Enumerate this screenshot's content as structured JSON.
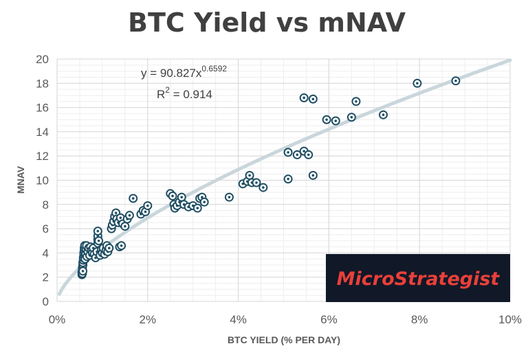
{
  "chart_data": {
    "type": "scatter",
    "title": "BTC Yield vs mNAV",
    "xlabel": "BTC YIELD (% PER DAY)",
    "ylabel": "MNAV",
    "xlim": [
      0,
      10
    ],
    "ylim": [
      0,
      20
    ],
    "x_ticks": [
      "0%",
      "2%",
      "4%",
      "6%",
      "8%",
      "10%"
    ],
    "y_ticks": [
      "0",
      "2",
      "4",
      "6",
      "8",
      "10",
      "12",
      "14",
      "16",
      "18",
      "20"
    ],
    "grid": true,
    "marker_color": "#1f4e63",
    "trendline": {
      "type": "power",
      "coefficient": 90.827,
      "exponent": 0.6592,
      "equation_base": "y = 90.827x",
      "equation_exponent": "0.6592",
      "r2_label": "R",
      "r2_sup": "2",
      "r2_value": " = 0.914",
      "color": "#c9d6dc"
    },
    "points": [
      [
        0.55,
        2.2
      ],
      [
        0.55,
        2.4
      ],
      [
        0.56,
        2.6
      ],
      [
        0.56,
        2.8
      ],
      [
        0.57,
        3.0
      ],
      [
        0.57,
        3.2
      ],
      [
        0.58,
        3.4
      ],
      [
        0.58,
        3.6
      ],
      [
        0.59,
        3.8
      ],
      [
        0.59,
        4.0
      ],
      [
        0.6,
        4.2
      ],
      [
        0.6,
        4.4
      ],
      [
        0.61,
        4.6
      ],
      [
        0.56,
        2.3
      ],
      [
        0.57,
        2.5
      ],
      [
        0.62,
        3.5
      ],
      [
        0.63,
        3.9
      ],
      [
        0.64,
        4.3
      ],
      [
        0.65,
        4.6
      ],
      [
        0.66,
        3.7
      ],
      [
        0.68,
        4.1
      ],
      [
        0.7,
        4.4
      ],
      [
        0.72,
        3.8
      ],
      [
        0.74,
        4.5
      ],
      [
        0.76,
        4.2
      ],
      [
        0.78,
        4.0
      ],
      [
        0.8,
        4.4
      ],
      [
        0.82,
        3.9
      ],
      [
        0.85,
        3.6
      ],
      [
        0.88,
        4.1
      ],
      [
        0.9,
        4.8
      ],
      [
        0.9,
        5.1
      ],
      [
        0.9,
        5.4
      ],
      [
        0.9,
        5.8
      ],
      [
        0.92,
        5.0
      ],
      [
        0.95,
        3.8
      ],
      [
        0.98,
        4.3
      ],
      [
        1.0,
        4.0
      ],
      [
        1.02,
        4.4
      ],
      [
        1.05,
        3.9
      ],
      [
        1.08,
        4.2
      ],
      [
        1.1,
        4.6
      ],
      [
        1.12,
        4.1
      ],
      [
        1.15,
        4.4
      ],
      [
        1.2,
        6.0
      ],
      [
        1.22,
        6.3
      ],
      [
        1.25,
        6.6
      ],
      [
        1.27,
        7.0
      ],
      [
        1.3,
        7.3
      ],
      [
        1.32,
        6.8
      ],
      [
        1.35,
        6.5
      ],
      [
        1.4,
        6.9
      ],
      [
        1.45,
        6.4
      ],
      [
        1.5,
        6.2
      ],
      [
        1.55,
        6.8
      ],
      [
        1.6,
        7.1
      ],
      [
        1.38,
        4.5
      ],
      [
        1.42,
        4.6
      ],
      [
        1.68,
        8.5
      ],
      [
        1.85,
        7.2
      ],
      [
        1.9,
        7.5
      ],
      [
        1.95,
        7.4
      ],
      [
        2.0,
        7.9
      ],
      [
        2.5,
        8.9
      ],
      [
        2.55,
        8.7
      ],
      [
        2.58,
        8.0
      ],
      [
        2.6,
        7.7
      ],
      [
        2.65,
        7.9
      ],
      [
        2.7,
        8.2
      ],
      [
        2.75,
        8.6
      ],
      [
        2.8,
        8.0
      ],
      [
        2.9,
        7.8
      ],
      [
        3.0,
        7.9
      ],
      [
        3.1,
        7.7
      ],
      [
        3.15,
        8.5
      ],
      [
        3.2,
        8.6
      ],
      [
        3.25,
        8.2
      ],
      [
        3.8,
        8.6
      ],
      [
        4.1,
        9.7
      ],
      [
        4.2,
        9.9
      ],
      [
        4.25,
        10.4
      ],
      [
        4.3,
        9.8
      ],
      [
        4.4,
        9.8
      ],
      [
        4.55,
        9.4
      ],
      [
        5.1,
        10.1
      ],
      [
        5.1,
        12.3
      ],
      [
        5.3,
        12.1
      ],
      [
        5.45,
        12.4
      ],
      [
        5.55,
        12.1
      ],
      [
        5.65,
        10.4
      ],
      [
        5.45,
        16.8
      ],
      [
        5.65,
        16.7
      ],
      [
        5.95,
        15.0
      ],
      [
        6.15,
        14.9
      ],
      [
        6.5,
        15.2
      ],
      [
        6.6,
        16.5
      ],
      [
        7.2,
        15.4
      ],
      [
        7.95,
        18.0
      ],
      [
        8.8,
        18.2
      ]
    ]
  },
  "logo": {
    "text_part1": "Micro",
    "text_part2": "Strategist",
    "background": "#111827",
    "text_color": "#e8403a"
  }
}
